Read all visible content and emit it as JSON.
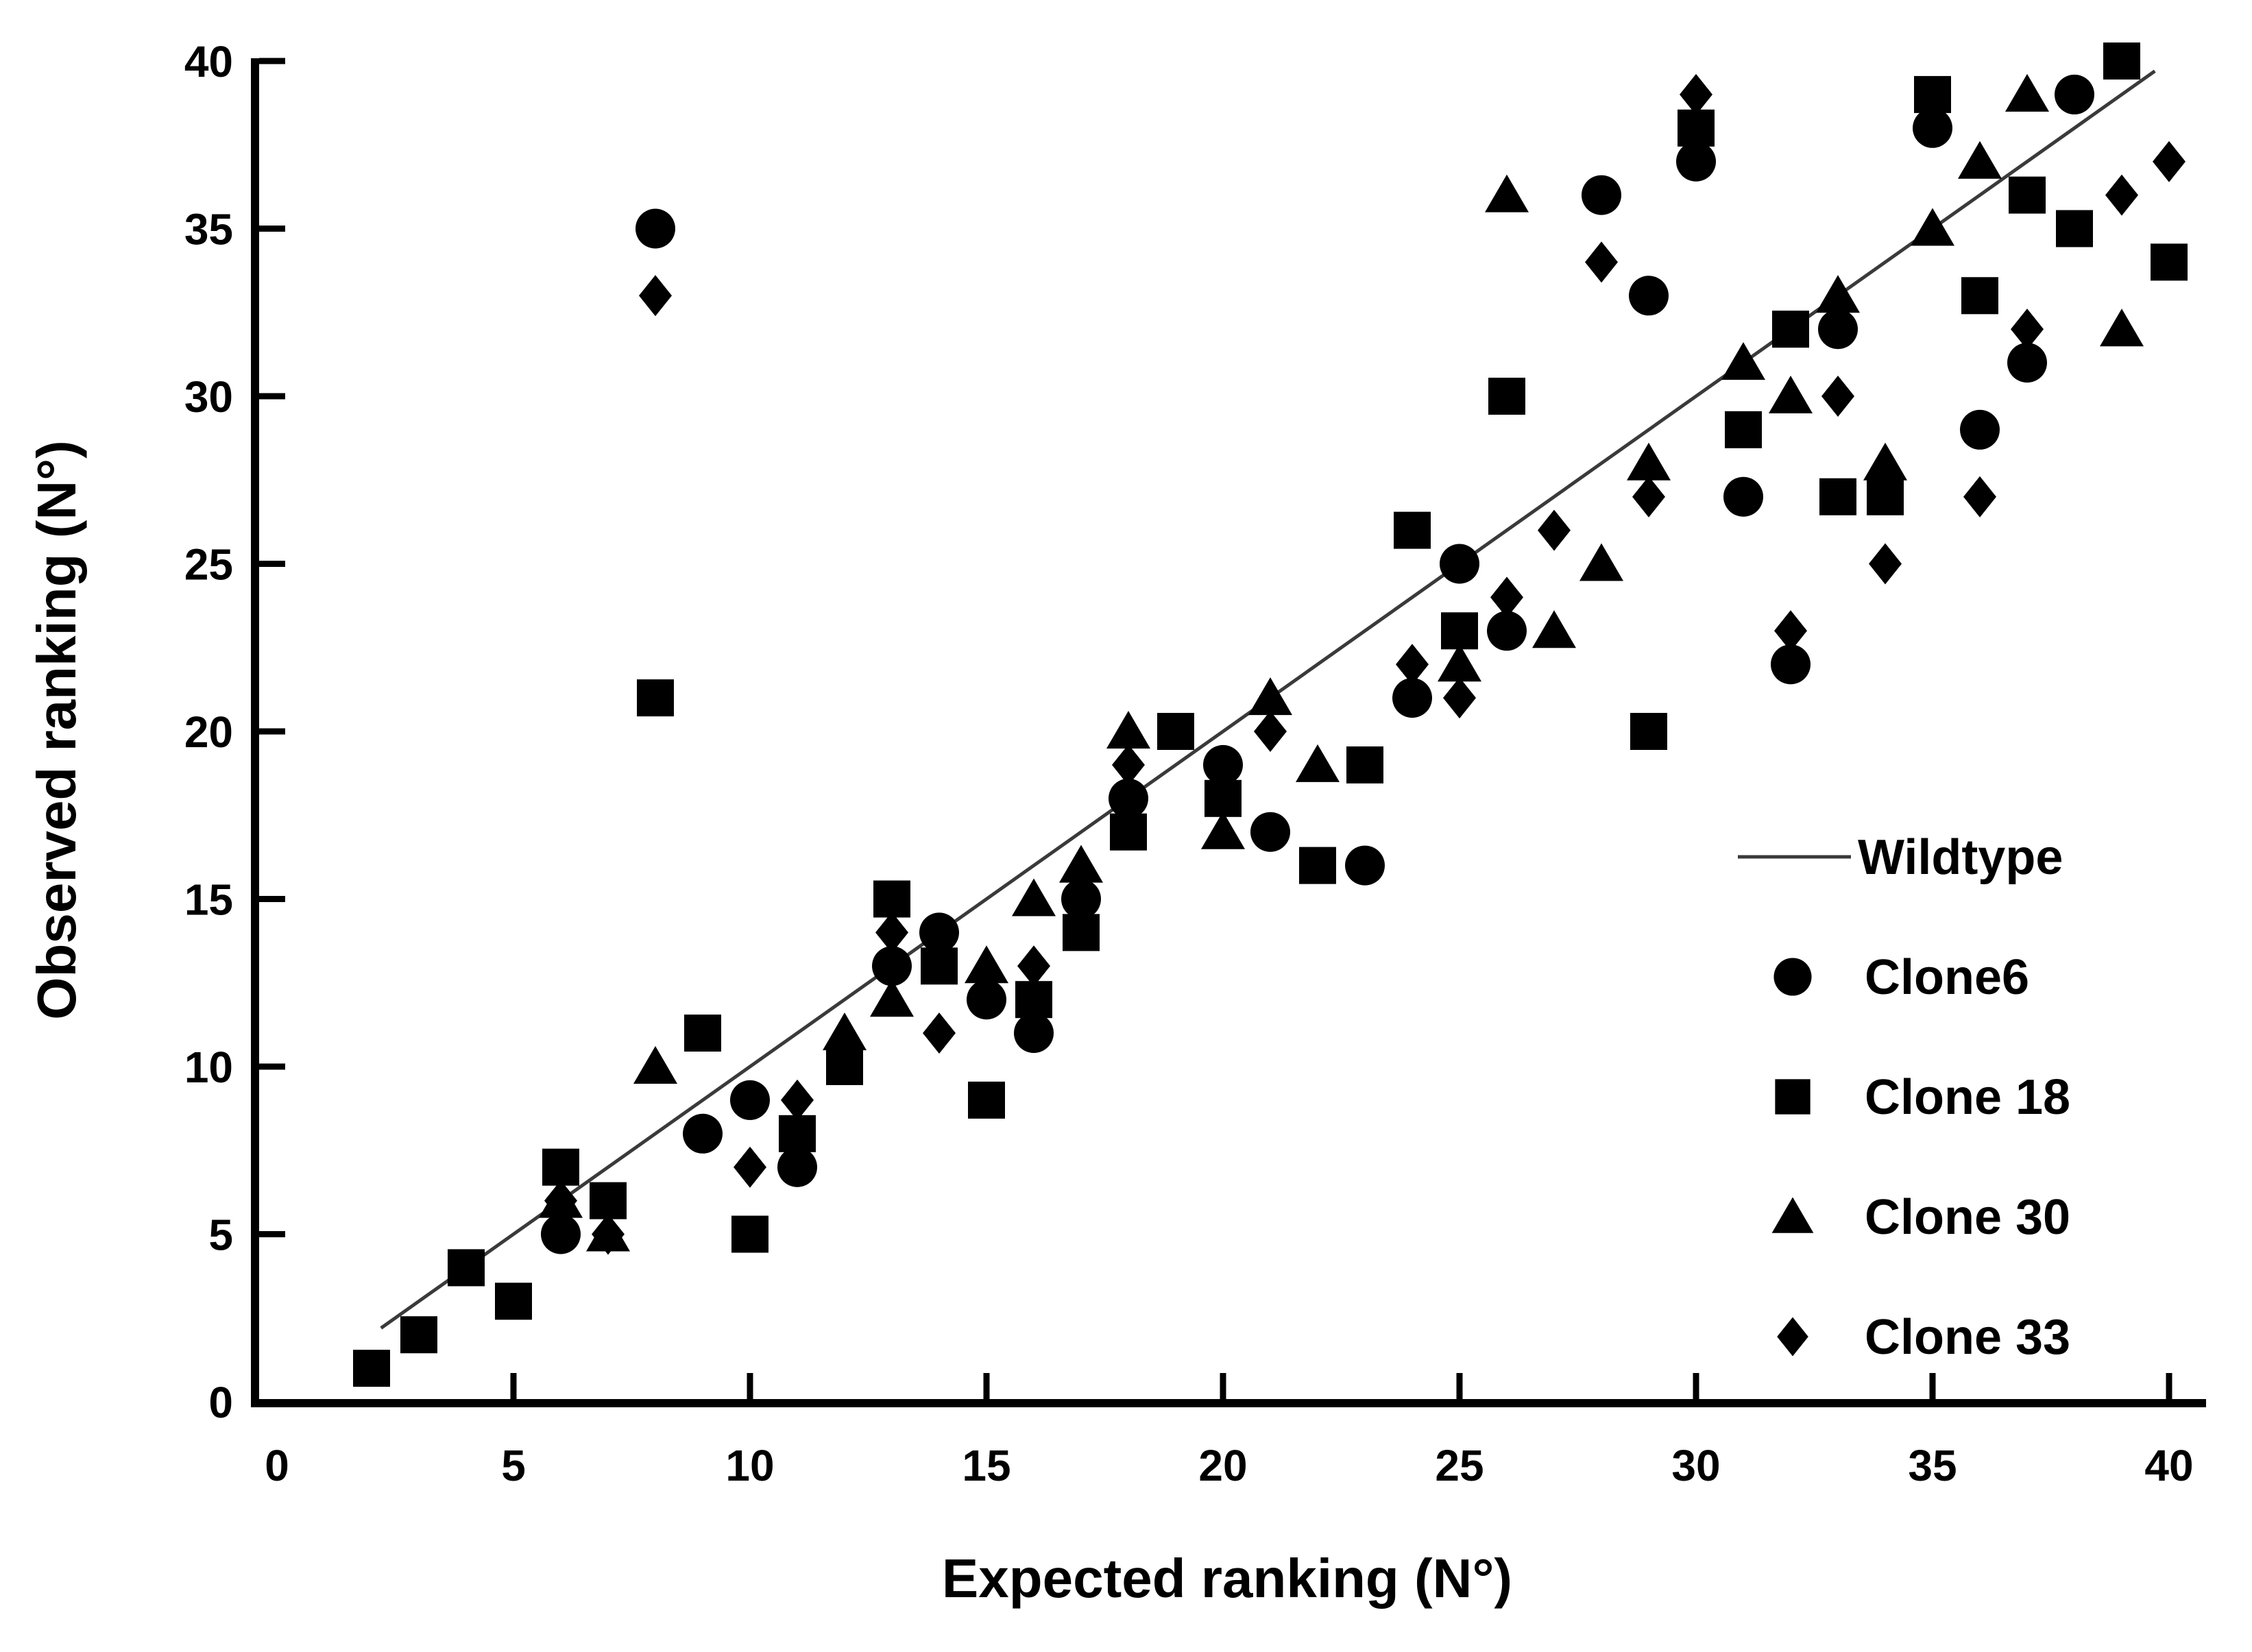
{
  "chart_data": {
    "type": "scatter",
    "title": "",
    "xlabel": "Expected ranking (N°)",
    "ylabel": "Observed ranking (N°)",
    "xlim": [
      0,
      40
    ],
    "ylim": [
      0,
      40
    ],
    "x_ticks": [
      0,
      5,
      10,
      15,
      20,
      25,
      30,
      35,
      40
    ],
    "y_ticks": [
      0,
      5,
      10,
      15,
      20,
      25,
      30,
      35,
      40
    ],
    "grid": false,
    "legend_position": "right-middle-inside",
    "wildtype_line": {
      "label": "Wildtype",
      "x": [
        2.2,
        39.7
      ],
      "y": [
        2.2,
        39.7
      ]
    },
    "series": [
      {
        "name": "Clone6",
        "marker": "circle",
        "points": [
          [
            6,
            5
          ],
          [
            8,
            35
          ],
          [
            9,
            8
          ],
          [
            10,
            9
          ],
          [
            11,
            7
          ],
          [
            13,
            13
          ],
          [
            14,
            14
          ],
          [
            15,
            12
          ],
          [
            16,
            11
          ],
          [
            17,
            15
          ],
          [
            18,
            18
          ],
          [
            20,
            19
          ],
          [
            21,
            17
          ],
          [
            23,
            16
          ],
          [
            24,
            21
          ],
          [
            25,
            25
          ],
          [
            26,
            23
          ],
          [
            28,
            36
          ],
          [
            29,
            33
          ],
          [
            30,
            37
          ],
          [
            31,
            27
          ],
          [
            32,
            22
          ],
          [
            33,
            32
          ],
          [
            35,
            38
          ],
          [
            36,
            29
          ],
          [
            37,
            31
          ],
          [
            38,
            39
          ]
        ]
      },
      {
        "name": "Clone 18",
        "marker": "square",
        "points": [
          [
            2,
            1
          ],
          [
            3,
            2
          ],
          [
            4,
            4
          ],
          [
            5,
            3
          ],
          [
            6,
            7
          ],
          [
            7,
            6
          ],
          [
            8,
            21
          ],
          [
            9,
            11
          ],
          [
            10,
            5
          ],
          [
            11,
            8
          ],
          [
            12,
            10
          ],
          [
            13,
            15
          ],
          [
            14,
            13
          ],
          [
            15,
            9
          ],
          [
            16,
            12
          ],
          [
            17,
            14
          ],
          [
            18,
            17
          ],
          [
            19,
            20
          ],
          [
            20,
            18
          ],
          [
            22,
            16
          ],
          [
            23,
            19
          ],
          [
            24,
            26
          ],
          [
            25,
            23
          ],
          [
            26,
            30
          ],
          [
            29,
            20
          ],
          [
            30,
            38
          ],
          [
            31,
            29
          ],
          [
            32,
            32
          ],
          [
            33,
            27
          ],
          [
            34,
            27
          ],
          [
            35,
            39
          ],
          [
            36,
            33
          ],
          [
            37,
            36
          ],
          [
            38,
            35
          ],
          [
            39,
            40
          ],
          [
            40,
            34
          ]
        ]
      },
      {
        "name": "Clone 30",
        "marker": "triangle",
        "points": [
          [
            6,
            6
          ],
          [
            7,
            5
          ],
          [
            8,
            10
          ],
          [
            12,
            11
          ],
          [
            13,
            12
          ],
          [
            15,
            13
          ],
          [
            16,
            15
          ],
          [
            17,
            16
          ],
          [
            18,
            20
          ],
          [
            20,
            17
          ],
          [
            21,
            21
          ],
          [
            22,
            19
          ],
          [
            25,
            22
          ],
          [
            26,
            36
          ],
          [
            27,
            23
          ],
          [
            28,
            25
          ],
          [
            29,
            28
          ],
          [
            31,
            31
          ],
          [
            32,
            30
          ],
          [
            33,
            33
          ],
          [
            34,
            28
          ],
          [
            35,
            35
          ],
          [
            36,
            37
          ],
          [
            37,
            39
          ],
          [
            39,
            32
          ]
        ]
      },
      {
        "name": "Clone 33",
        "marker": "diamond",
        "points": [
          [
            6,
            6
          ],
          [
            7,
            5
          ],
          [
            8,
            33
          ],
          [
            10,
            7
          ],
          [
            11,
            9
          ],
          [
            13,
            14
          ],
          [
            14,
            11
          ],
          [
            16,
            13
          ],
          [
            18,
            19
          ],
          [
            21,
            20
          ],
          [
            24,
            22
          ],
          [
            25,
            21
          ],
          [
            26,
            24
          ],
          [
            27,
            26
          ],
          [
            28,
            34
          ],
          [
            29,
            27
          ],
          [
            30,
            39
          ],
          [
            32,
            23
          ],
          [
            33,
            30
          ],
          [
            34,
            25
          ],
          [
            36,
            27
          ],
          [
            37,
            32
          ],
          [
            39,
            36
          ],
          [
            40,
            37
          ]
        ]
      }
    ],
    "legend_entries": [
      "Wildtype",
      "Clone6",
      "Clone 18",
      "Clone 30",
      "Clone 33"
    ]
  },
  "styles": {
    "marker_color": "#000000",
    "line_color": "#3a3a3a",
    "axis_color": "#000000",
    "background": "#ffffff"
  }
}
